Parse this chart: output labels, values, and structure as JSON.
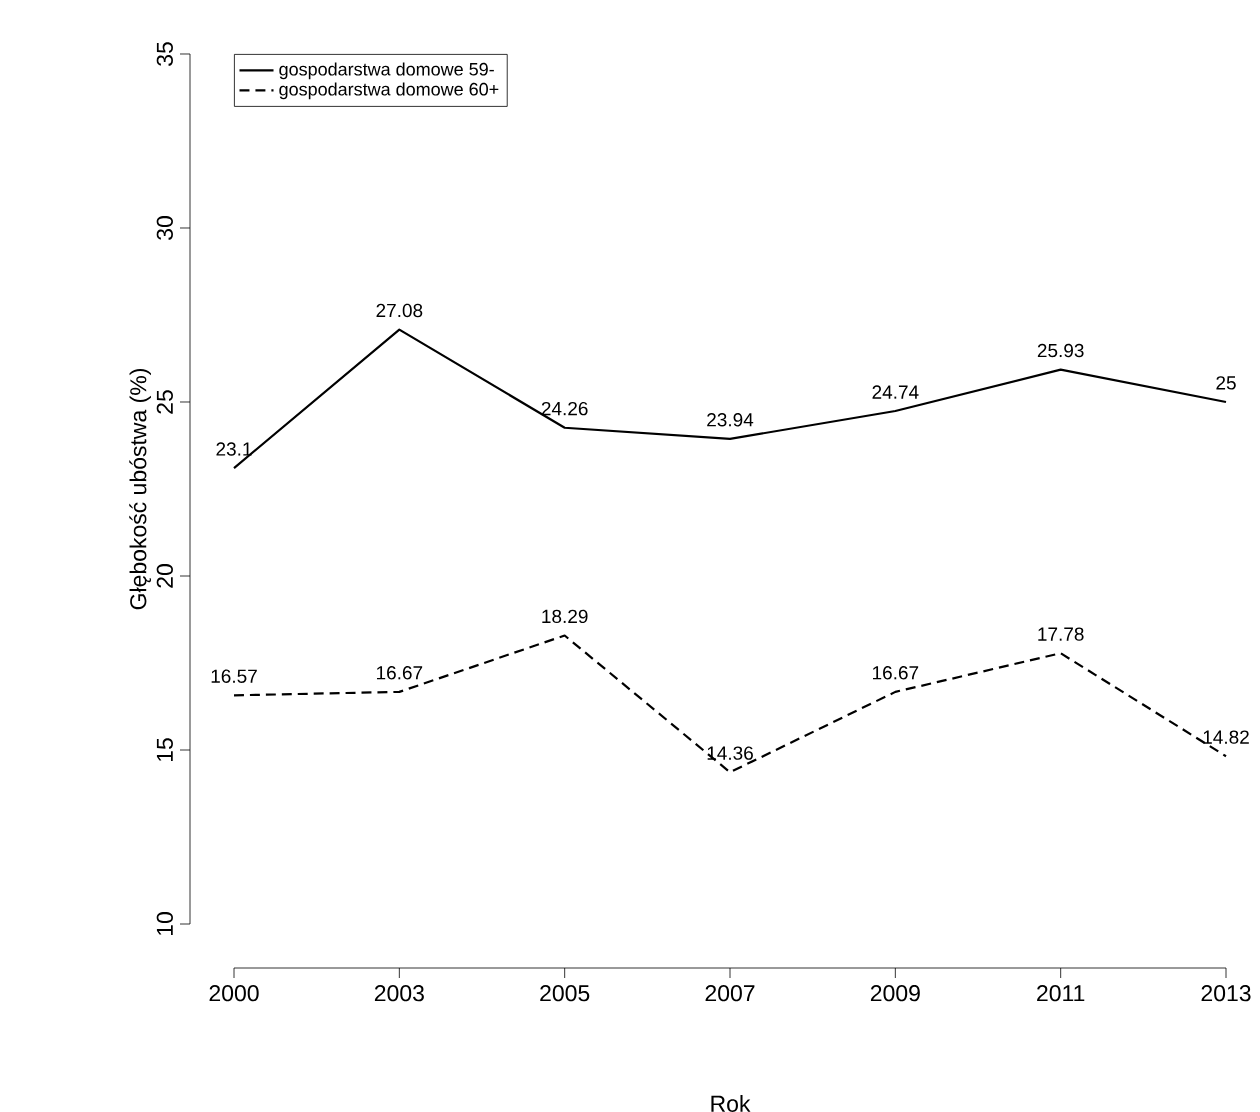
{
  "chart_data": {
    "type": "line",
    "xlabel": "Rok",
    "ylabel": "Głębokość ubóstwa (%)",
    "categories": [
      "2000",
      "2003",
      "2005",
      "2007",
      "2009",
      "2011",
      "2013"
    ],
    "series": [
      {
        "name": "gospodarstwa domowe 59-",
        "color": "#000000",
        "line_style": "solid",
        "values": [
          23.1,
          27.08,
          24.26,
          23.94,
          24.74,
          25.93,
          25
        ]
      },
      {
        "name": "gospodarstwa domowe 60+",
        "color": "#000000",
        "line_style": "dashed",
        "values": [
          16.57,
          16.67,
          18.29,
          14.36,
          16.67,
          17.78,
          14.82
        ]
      }
    ],
    "ylim": [
      10,
      35
    ],
    "yticks": [
      10,
      15,
      20,
      25,
      30,
      35
    ],
    "data_labels": true,
    "legend": "top left",
    "grid": false,
    "marker": "none"
  }
}
